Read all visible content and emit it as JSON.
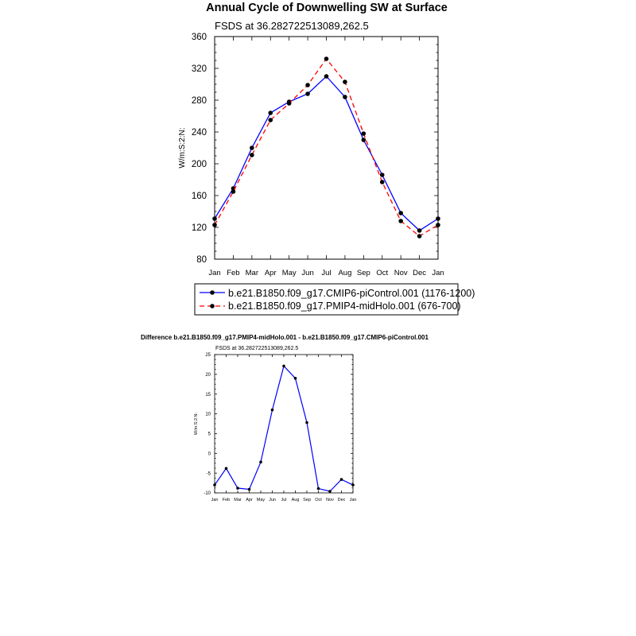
{
  "chart_data": [
    {
      "type": "line",
      "title": "Annual Cycle of Downwelling SW at Surface",
      "subtitle": "FSDS at 36.282722513089,262.5",
      "ylabel": "W/m:S:2:N:",
      "xlabel": "",
      "categories": [
        "Jan",
        "Feb",
        "Mar",
        "Apr",
        "May",
        "Jun",
        "Jul",
        "Aug",
        "Sep",
        "Oct",
        "Nov",
        "Dec",
        "Jan"
      ],
      "ylim": [
        80,
        360
      ],
      "yticks": [
        80,
        120,
        160,
        200,
        240,
        280,
        320,
        360
      ],
      "grid": false,
      "legend_position": "below",
      "series": [
        {
          "name": "b.e21.B1850.f09_g17.CMIP6-piControl.001 (1176-1200)",
          "color": "#0000ff",
          "line_style": "solid",
          "values": [
            131,
            169,
            220,
            264,
            278,
            288,
            310,
            284,
            230,
            186,
            138,
            116,
            131
          ]
        },
        {
          "name": "b.e21.B1850.f09_g17.PMIP4-midHolo.001 (676-700)",
          "color": "#ff0000",
          "line_style": "dashed",
          "values": [
            123,
            165,
            211,
            255,
            276,
            299,
            332,
            303,
            238,
            177,
            128,
            109,
            123
          ]
        }
      ]
    },
    {
      "type": "line",
      "title": "Difference b.e21.B1850.f09_g17.PMIP4-midHolo.001 - b.e21.B1850.f09_g17.CMIP6-piControl.001",
      "subtitle": "FSDS at 36.282722513089,262.5",
      "ylabel": "W/m:S:2:N:",
      "xlabel": "",
      "categories": [
        "Jan",
        "Feb",
        "Mar",
        "Apr",
        "May",
        "Jun",
        "Jul",
        "Aug",
        "Sep",
        "Oct",
        "Nov",
        "Dec",
        "Jan"
      ],
      "ylim": [
        -10,
        25
      ],
      "yticks": [
        -10,
        -5,
        0,
        5,
        10,
        15,
        20,
        25
      ],
      "grid": false,
      "series": [
        {
          "color": "#0000ff",
          "line_style": "solid",
          "values": [
            -8,
            -3.8,
            -8.8,
            -9.1,
            -2.2,
            11,
            22.1,
            19,
            7.8,
            -8.9,
            -9.6,
            -6.6,
            -8
          ]
        }
      ]
    }
  ]
}
